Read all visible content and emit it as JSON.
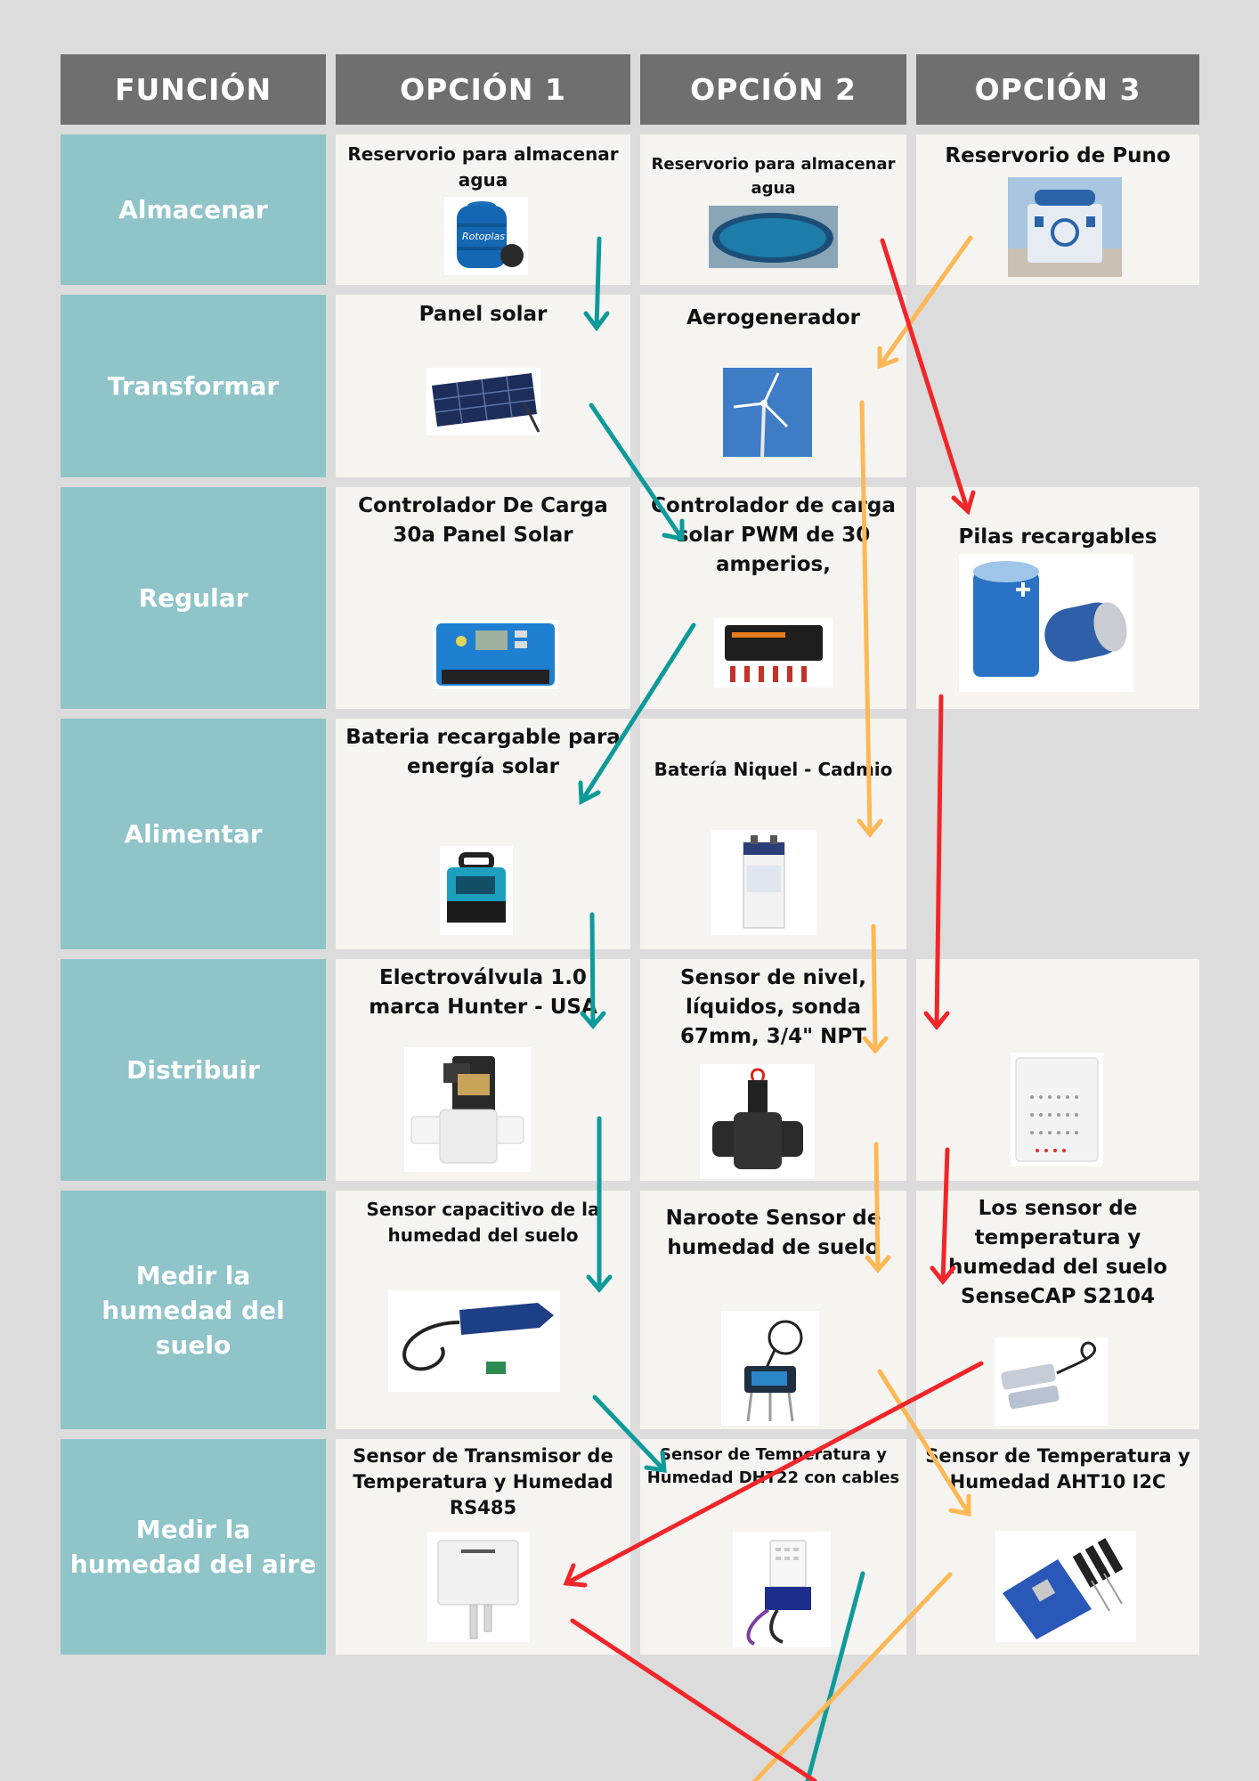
{
  "headers": [
    "FUNCIÓN",
    "OPCIÓN 1",
    "OPCIÓN 2",
    "OPCIÓN 3"
  ],
  "functions": [
    "Almacenar",
    "Transformar",
    "Regular",
    "Alimentar",
    "Distribuir",
    "Medir la humedad del suelo",
    "Medir la humedad del aire"
  ],
  "options": [
    [
      "Reservorio para almacenar agua",
      "Reservorio para almacenar agua",
      "Reservorio de Puno"
    ],
    [
      "Panel solar",
      "Aerogenerador",
      ""
    ],
    [
      "Controlador De Carga 30a Panel Solar",
      "Controlador de carga solar PWM de 30 amperios,",
      "Pilas recargables"
    ],
    [
      "Bateria recargable para energía solar",
      "Batería Niquel - Cadmio",
      ""
    ],
    [
      "Electroválvula 1.0 marca Hunter - USA",
      "Sensor de nivel, líquidos, sonda 67mm, 3/4\" NPT",
      ""
    ],
    [
      "Sensor capacitivo de la humedad del suelo",
      "Naroote Sensor de humedad de suelo",
      "Los sensor de temperatura y humedad del suelo SenseCAP S2104"
    ],
    [
      "Sensor de Transmisor de Temperatura y Humedad RS485",
      "Sensor de Temperatura y Humedad DHT22 con cables",
      "Sensor de Temperatura y Humedad AHT10 I2C"
    ]
  ],
  "image_labels": {
    "rotoplas": "Rotoplas"
  },
  "colors": {
    "teal": "#0f9a9a",
    "orange": "#fdb855",
    "red": "#f0262a",
    "header": "#6f6f6f",
    "function": "#8fc4c9"
  }
}
